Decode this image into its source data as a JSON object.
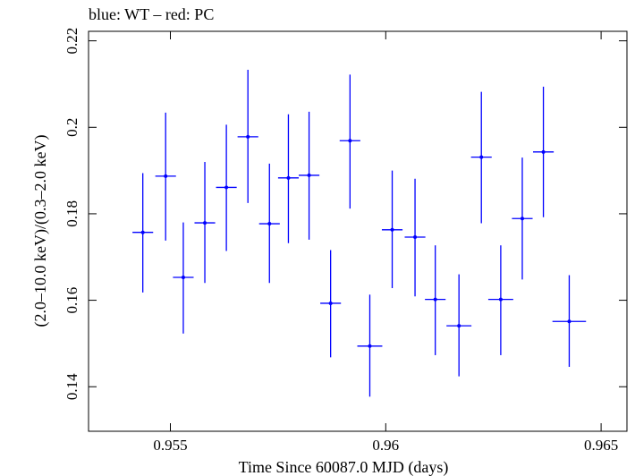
{
  "chart_data": {
    "type": "scatter",
    "title": "blue: WT – red: PC",
    "xlabel": "Time Since 60087.0 MJD (days)",
    "ylabel": "(2.0–10.0 keV)/(0.3–2.0 keV)",
    "xlim": [
      0.9531,
      0.9656
    ],
    "ylim": [
      0.1297,
      0.2222
    ],
    "x_ticks": [
      0.955,
      0.96,
      0.965
    ],
    "x_tick_labels": [
      "0.955",
      "0.96",
      "0.965"
    ],
    "y_ticks": [
      0.14,
      0.16,
      0.18,
      0.2,
      0.22
    ],
    "y_tick_labels": [
      "0.14",
      "0.16",
      "0.18",
      "0.2",
      "0.22"
    ],
    "grid": false,
    "series": [
      {
        "color": "#0000ff",
        "points": [
          {
            "x": 0.95436,
            "y": 0.1757,
            "xerr": 0.00024,
            "yerr_low": 0.0139,
            "yerr_high": 0.0137
          },
          {
            "x": 0.95489,
            "y": 0.1887,
            "xerr": 0.00024,
            "yerr_low": 0.0149,
            "yerr_high": 0.0147
          },
          {
            "x": 0.9553,
            "y": 0.1653,
            "xerr": 0.00024,
            "yerr_low": 0.013,
            "yerr_high": 0.0127
          },
          {
            "x": 0.9558,
            "y": 0.1779,
            "xerr": 0.00024,
            "yerr_low": 0.0139,
            "yerr_high": 0.0141
          },
          {
            "x": 0.9563,
            "y": 0.1861,
            "xerr": 0.00024,
            "yerr_low": 0.0147,
            "yerr_high": 0.0145
          },
          {
            "x": 0.9568,
            "y": 0.1978,
            "xerr": 0.00024,
            "yerr_low": 0.0153,
            "yerr_high": 0.0155
          },
          {
            "x": 0.9573,
            "y": 0.1777,
            "xerr": 0.00024,
            "yerr_low": 0.0137,
            "yerr_high": 0.0139
          },
          {
            "x": 0.95774,
            "y": 0.1883,
            "xerr": 0.00024,
            "yerr_low": 0.0151,
            "yerr_high": 0.0147
          },
          {
            "x": 0.95822,
            "y": 0.1889,
            "xerr": 0.00024,
            "yerr_low": 0.0149,
            "yerr_high": 0.0147
          },
          {
            "x": 0.95872,
            "y": 0.1593,
            "xerr": 0.00024,
            "yerr_low": 0.0125,
            "yerr_high": 0.0123
          },
          {
            "x": 0.95917,
            "y": 0.1969,
            "xerr": 0.00024,
            "yerr_low": 0.0157,
            "yerr_high": 0.0153
          },
          {
            "x": 0.95963,
            "y": 0.1494,
            "xerr": 0.00029,
            "yerr_low": 0.0117,
            "yerr_high": 0.0119
          },
          {
            "x": 0.96015,
            "y": 0.1763,
            "xerr": 0.00024,
            "yerr_low": 0.0135,
            "yerr_high": 0.0137
          },
          {
            "x": 0.96068,
            "y": 0.1746,
            "xerr": 0.00024,
            "yerr_low": 0.0137,
            "yerr_high": 0.0135
          },
          {
            "x": 0.96115,
            "y": 0.1602,
            "xerr": 0.00024,
            "yerr_low": 0.0129,
            "yerr_high": 0.0125
          },
          {
            "x": 0.9617,
            "y": 0.1541,
            "xerr": 0.00029,
            "yerr_low": 0.0117,
            "yerr_high": 0.0119
          },
          {
            "x": 0.96222,
            "y": 0.1931,
            "xerr": 0.00024,
            "yerr_low": 0.0153,
            "yerr_high": 0.0151
          },
          {
            "x": 0.96267,
            "y": 0.1602,
            "xerr": 0.00029,
            "yerr_low": 0.0129,
            "yerr_high": 0.0125
          },
          {
            "x": 0.96317,
            "y": 0.1789,
            "xerr": 0.00024,
            "yerr_low": 0.0141,
            "yerr_high": 0.0141
          },
          {
            "x": 0.96366,
            "y": 0.1943,
            "xerr": 0.00024,
            "yerr_low": 0.0151,
            "yerr_high": 0.0151
          },
          {
            "x": 0.96426,
            "y": 0.1551,
            "xerr": 0.00039,
            "yerr_low": 0.0105,
            "yerr_high": 0.0107
          }
        ]
      }
    ]
  }
}
